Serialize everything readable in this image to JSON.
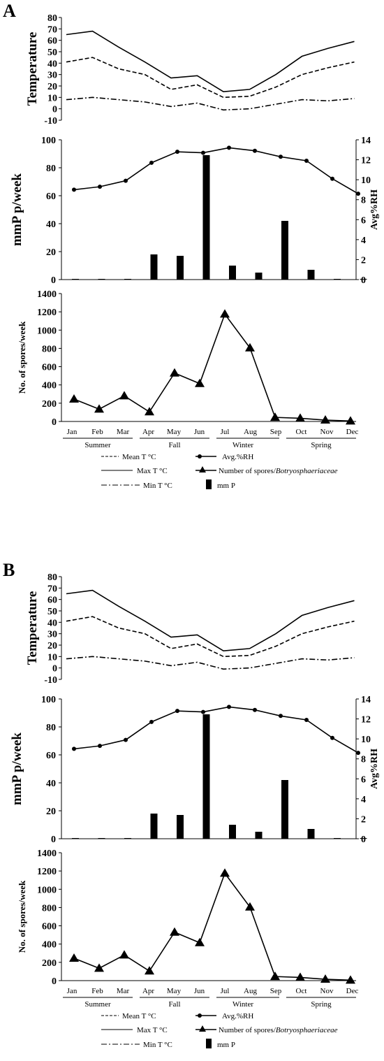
{
  "panels": [
    {
      "letter": "A"
    },
    {
      "letter": "B"
    }
  ],
  "months": [
    "Jan",
    "Feb",
    "Mar",
    "Apr",
    "May",
    "Jun",
    "Jul",
    "Aug",
    "Sep",
    "Oct",
    "Nov",
    "Dec"
  ],
  "seasons": [
    "Summer",
    "Fall",
    "Winter",
    "Spring"
  ],
  "legend": {
    "mean": "Mean T °C",
    "max": "Max T °C",
    "min": "Min T °C",
    "rh": "Avg.%RH",
    "spores_prefix": "Number of spores/",
    "spores_italic": "Botryosphaeriaceae",
    "precip": "mm P"
  },
  "chart_data": [
    {
      "type": "line",
      "ylabel": "Temperature",
      "ylim": [
        -10,
        80
      ],
      "yticks": [
        -10,
        0,
        10,
        20,
        30,
        40,
        50,
        60,
        70,
        80
      ],
      "categories": [
        "Jan",
        "Feb",
        "Mar",
        "Apr",
        "May",
        "Jun",
        "Jul",
        "Aug",
        "Sep",
        "Oct",
        "Nov",
        "Dec"
      ],
      "series": [
        {
          "name": "Max T °C",
          "values": [
            65,
            68,
            54,
            41,
            27,
            29,
            15,
            17,
            30,
            46,
            53,
            59
          ]
        },
        {
          "name": "Mean T °C",
          "values": [
            41,
            45,
            35,
            30,
            17,
            21,
            10,
            11,
            19,
            30,
            36,
            41
          ]
        },
        {
          "name": "Min T °C",
          "values": [
            8,
            10,
            8,
            6,
            2,
            5,
            -1,
            0,
            4,
            8,
            7,
            9
          ]
        }
      ]
    },
    {
      "type": "bar",
      "ylabel": "mmP p/week",
      "ylim": [
        0,
        100
      ],
      "yticks": [
        0,
        20,
        40,
        60,
        80,
        100
      ],
      "y2label": "Avg%RH",
      "y2lim": [
        0,
        14
      ],
      "y2ticks": [
        0,
        2,
        4,
        6,
        8,
        10,
        12,
        14
      ],
      "categories": [
        "Jan",
        "Feb",
        "Mar",
        "Apr",
        "May",
        "Jun",
        "Jul",
        "Aug",
        "Sep",
        "Oct",
        "Nov",
        "Dec"
      ],
      "series": [
        {
          "name": "mm P",
          "values": [
            0.2,
            0.4,
            0.3,
            18,
            17,
            89,
            10,
            5,
            42,
            7,
            0.3,
            0
          ]
        },
        {
          "name": "Avg.%RH",
          "axis": "right",
          "values": [
            9.0,
            9.3,
            9.9,
            11.7,
            12.8,
            12.7,
            13.2,
            12.9,
            12.3,
            11.9,
            10.1,
            8.6
          ]
        }
      ]
    },
    {
      "type": "line",
      "ylabel": "No. of spores/week",
      "ylim": [
        0,
        1400
      ],
      "yticks": [
        0,
        200,
        400,
        600,
        800,
        1000,
        1200,
        1400
      ],
      "categories": [
        "Jan",
        "Feb",
        "Mar",
        "Apr",
        "May",
        "Jun",
        "Jul",
        "Aug",
        "Sep",
        "Oct",
        "Nov",
        "Dec"
      ],
      "series": [
        {
          "name": "Number of spores/Botryosphaeriaceae",
          "values": [
            245,
            135,
            280,
            105,
            530,
            415,
            1175,
            805,
            45,
            35,
            15,
            5
          ]
        }
      ]
    }
  ]
}
